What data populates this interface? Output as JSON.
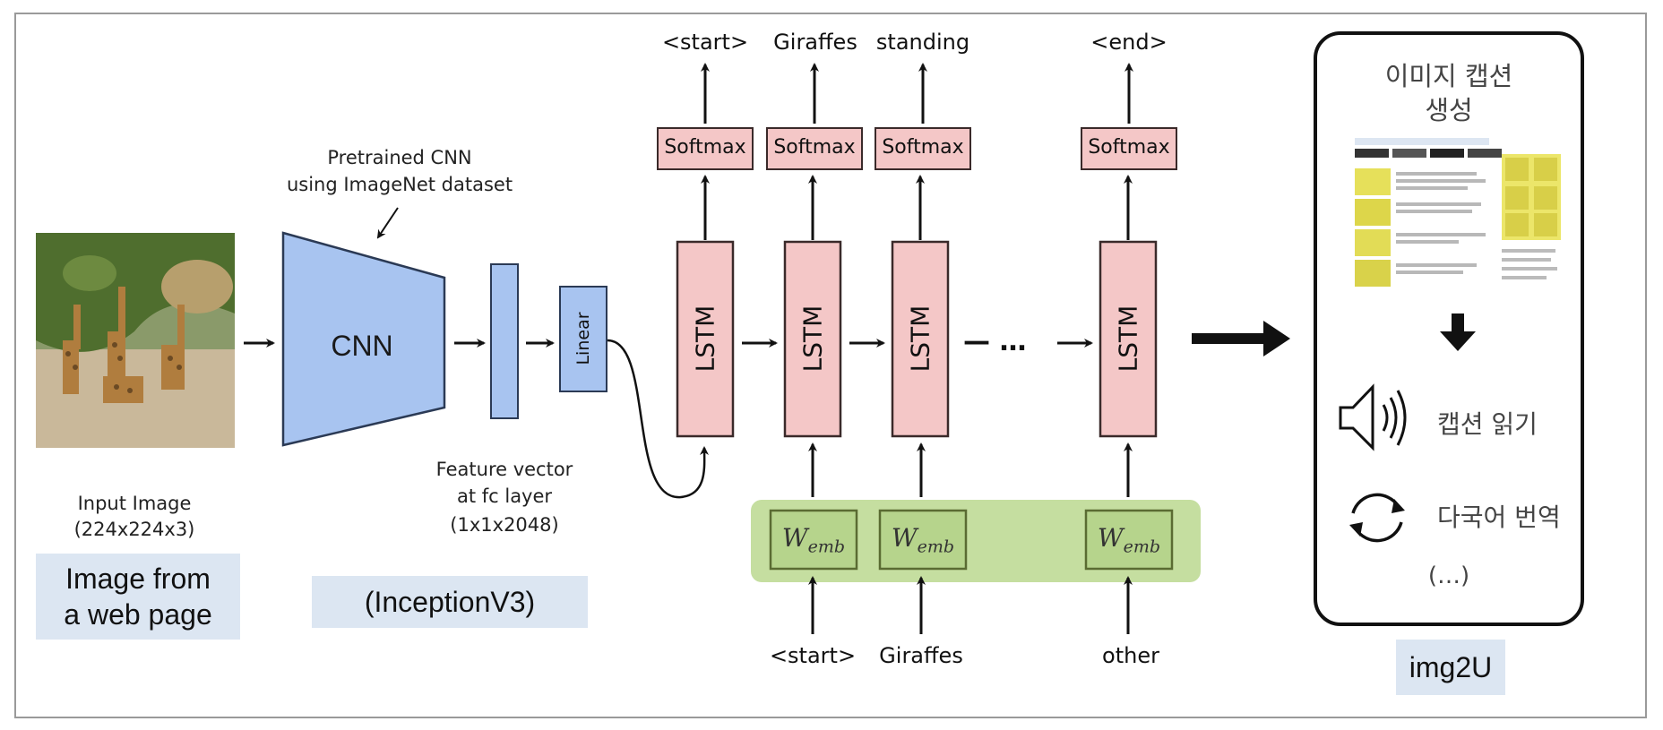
{
  "colors": {
    "cnn_fill": "#a8c4f0",
    "cnn_stroke": "#2b3a55",
    "lstm_fill": "#f4c7c7",
    "emb_panel": "#c5dea0",
    "emb_box": "#b6d48c",
    "tag_bg": "#dce6f2"
  },
  "input": {
    "caption_line1": "Input Image",
    "caption_line2": "(224x224x3)",
    "tag_line1": "Image from",
    "tag_line2": "a web page"
  },
  "cnn": {
    "annotation_line1": "Pretrained CNN",
    "annotation_line2": "using ImageNet dataset",
    "label": "CNN",
    "tag": "(InceptionV3)"
  },
  "feature": {
    "line1": "Feature vector",
    "line2": "at fc layer",
    "line3": "(1x1x2048)"
  },
  "linear": {
    "label": "Linear"
  },
  "lstm": {
    "label": "LSTM"
  },
  "softmax": {
    "label": "Softmax"
  },
  "outputs": [
    "<start>",
    "Giraffes",
    "standing",
    "<end>"
  ],
  "inputs": [
    "<start>",
    "Giraffes",
    "other"
  ],
  "ellipsis": "— …",
  "emb": {
    "main": "W",
    "sub": "emb"
  },
  "img2u": {
    "title_line1": "이미지 캡션",
    "title_line2": "생성",
    "read_caption": "캡션 읽기",
    "translate": "다국어 번역",
    "more": "(…)",
    "tag": "img2U"
  },
  "icons": [
    "arrow-right-icon",
    "arrow-up-icon",
    "arrow-down-icon",
    "speaker-icon",
    "refresh-icon"
  ]
}
